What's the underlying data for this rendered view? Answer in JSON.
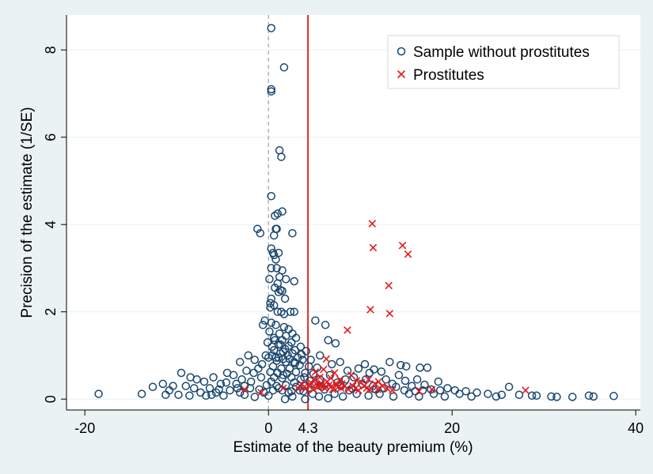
{
  "chart_data": {
    "type": "scatter",
    "xlabel": "Estimate of the beauty premium (%)",
    "ylabel": "Precision of the estimate (1/SE)",
    "xlim": [
      -22,
      40.5
    ],
    "ylim": [
      -0.25,
      8.8
    ],
    "xticks": [
      -20,
      0,
      20,
      40
    ],
    "yticks": [
      0,
      2,
      4,
      6,
      8
    ],
    "grid": "horizontal",
    "legend_position": "top-right",
    "reference_lines": [
      {
        "x": 0,
        "style": "dashed",
        "color": "#a6a6a6"
      },
      {
        "x": 4.3,
        "style": "solid",
        "color": "#e31a1c",
        "label": "4.3"
      }
    ],
    "series": [
      {
        "name": "Sample without prostitutes",
        "marker": "circle",
        "color": "#1a476f",
        "points": [
          [
            0.3,
            8.5
          ],
          [
            1.7,
            7.6
          ],
          [
            0.3,
            7.1
          ],
          [
            0.3,
            7.05
          ],
          [
            1.2,
            5.7
          ],
          [
            1.4,
            5.55
          ],
          [
            0.3,
            4.65
          ],
          [
            1.5,
            4.3
          ],
          [
            1.0,
            4.25
          ],
          [
            0.7,
            4.2
          ],
          [
            0.9,
            3.9
          ],
          [
            0.8,
            3.9
          ],
          [
            -1.2,
            3.9
          ],
          [
            -0.9,
            3.8
          ],
          [
            2.6,
            3.8
          ],
          [
            0.6,
            3.75
          ],
          [
            0.3,
            3.45
          ],
          [
            0.5,
            3.35
          ],
          [
            1.1,
            3.35
          ],
          [
            0.6,
            3.3
          ],
          [
            0.8,
            3.2
          ],
          [
            0.9,
            3.0
          ],
          [
            0.3,
            3.0
          ],
          [
            1.5,
            2.95
          ],
          [
            1.2,
            2.8
          ],
          [
            0.1,
            2.75
          ],
          [
            1.9,
            2.75
          ],
          [
            2.8,
            2.7
          ],
          [
            1.0,
            2.65
          ],
          [
            0.7,
            2.55
          ],
          [
            1.3,
            2.5
          ],
          [
            1.5,
            2.48
          ],
          [
            1.1,
            2.45
          ],
          [
            0.3,
            2.3
          ],
          [
            1.8,
            2.3
          ],
          [
            0.2,
            2.2
          ],
          [
            0.6,
            2.15
          ],
          [
            0.2,
            2.1
          ],
          [
            1.0,
            2.0
          ],
          [
            1.4,
            2.0
          ],
          [
            1.7,
            1.95
          ],
          [
            2.4,
            2.0
          ],
          [
            2.8,
            2.0
          ],
          [
            -0.4,
            1.8
          ],
          [
            0.3,
            1.75
          ],
          [
            -0.6,
            1.7
          ],
          [
            0.8,
            1.7
          ],
          [
            1.7,
            1.65
          ],
          [
            2.2,
            1.6
          ],
          [
            5.1,
            1.8
          ],
          [
            6.2,
            1.7
          ],
          [
            0.1,
            1.55
          ],
          [
            1.2,
            1.5
          ],
          [
            2.6,
            1.5
          ],
          [
            0.6,
            1.4
          ],
          [
            1.9,
            1.45
          ],
          [
            3.0,
            1.4
          ],
          [
            -0.1,
            1.3
          ],
          [
            1.5,
            1.35
          ],
          [
            2.5,
            1.3
          ],
          [
            6.5,
            1.35
          ],
          [
            7.3,
            1.28
          ],
          [
            0.4,
            1.2
          ],
          [
            1.1,
            1.25
          ],
          [
            3.5,
            1.2
          ],
          [
            4.1,
            1.1
          ],
          [
            5.6,
            1.0
          ],
          [
            -2.2,
            1.0
          ],
          [
            -0.3,
            1.0
          ],
          [
            1.3,
            1.05
          ],
          [
            2.1,
            1.0
          ],
          [
            3.2,
            0.95
          ],
          [
            4.6,
            0.9
          ],
          [
            7.8,
            0.85
          ],
          [
            -3.1,
            0.85
          ],
          [
            -1.5,
            0.9
          ],
          [
            0.8,
            0.95
          ],
          [
            2.8,
            0.85
          ],
          [
            3.7,
            0.9
          ],
          [
            6.9,
            0.8
          ],
          [
            10.5,
            0.8
          ],
          [
            13.2,
            0.85
          ],
          [
            14.4,
            0.78
          ],
          [
            15.0,
            0.75
          ],
          [
            16.5,
            0.72
          ],
          [
            17.3,
            0.72
          ],
          [
            9.8,
            0.7
          ],
          [
            11.5,
            0.68
          ],
          [
            12.3,
            0.63
          ],
          [
            -4.5,
            0.6
          ],
          [
            -3.8,
            0.55
          ],
          [
            -2.4,
            0.65
          ],
          [
            -1.1,
            0.7
          ],
          [
            0.5,
            0.75
          ],
          [
            2.3,
            0.7
          ],
          [
            5.3,
            0.72
          ],
          [
            8.6,
            0.65
          ],
          [
            11.0,
            0.6
          ],
          [
            14.2,
            0.55
          ],
          [
            -6.0,
            0.5
          ],
          [
            -2.9,
            0.45
          ],
          [
            -0.8,
            0.5
          ],
          [
            1.6,
            0.55
          ],
          [
            3.9,
            0.5
          ],
          [
            6.7,
            0.55
          ],
          [
            9.3,
            0.5
          ],
          [
            12.8,
            0.45
          ],
          [
            16.2,
            0.45
          ],
          [
            18.5,
            0.4
          ],
          [
            -9.5,
            0.6
          ],
          [
            -8.5,
            0.5
          ],
          [
            -7.8,
            0.45
          ],
          [
            -7.0,
            0.4
          ],
          [
            -5.2,
            0.35
          ],
          [
            -3.5,
            0.35
          ],
          [
            -1.9,
            0.4
          ],
          [
            0.3,
            0.4
          ],
          [
            2.8,
            0.38
          ],
          [
            5.0,
            0.35
          ],
          [
            7.5,
            0.38
          ],
          [
            10.2,
            0.35
          ],
          [
            13.5,
            0.35
          ],
          [
            15.6,
            0.3
          ],
          [
            17.0,
            0.33
          ],
          [
            19.5,
            0.25
          ],
          [
            -11.5,
            0.35
          ],
          [
            -10.4,
            0.3
          ],
          [
            -9.0,
            0.3
          ],
          [
            -8.1,
            0.25
          ],
          [
            -6.4,
            0.25
          ],
          [
            -4.2,
            0.2
          ],
          [
            -2.0,
            0.25
          ],
          [
            1.1,
            0.25
          ],
          [
            3.4,
            0.2
          ],
          [
            6.1,
            0.22
          ],
          [
            8.8,
            0.2
          ],
          [
            11.7,
            0.22
          ],
          [
            14.8,
            0.2
          ],
          [
            16.8,
            0.2
          ],
          [
            18.7,
            0.2
          ],
          [
            20.3,
            0.2
          ],
          [
            21.5,
            0.18
          ],
          [
            22.7,
            0.15
          ],
          [
            -12.6,
            0.28
          ],
          [
            -10.8,
            0.2
          ],
          [
            -7.4,
            0.15
          ],
          [
            -5.7,
            0.15
          ],
          [
            -3.1,
            0.15
          ],
          [
            -0.5,
            0.15
          ],
          [
            2.2,
            0.15
          ],
          [
            4.8,
            0.12
          ],
          [
            7.2,
            0.12
          ],
          [
            9.6,
            0.12
          ],
          [
            12.1,
            0.12
          ],
          [
            15.3,
            0.12
          ],
          [
            18.0,
            0.12
          ],
          [
            20.8,
            0.12
          ],
          [
            23.9,
            0.12
          ],
          [
            25.4,
            0.1
          ],
          [
            26.2,
            0.28
          ],
          [
            27.3,
            0.1
          ],
          [
            -18.5,
            0.12
          ],
          [
            -13.8,
            0.12
          ],
          [
            -11.2,
            0.1
          ],
          [
            -9.8,
            0.1
          ],
          [
            -8.6,
            0.08
          ],
          [
            -6.8,
            0.08
          ],
          [
            -4.9,
            0.08
          ],
          [
            -2.6,
            0.1
          ],
          [
            0.0,
            0.08
          ],
          [
            2.6,
            0.06
          ],
          [
            5.5,
            0.06
          ],
          [
            8.1,
            0.06
          ],
          [
            10.9,
            0.08
          ],
          [
            13.6,
            0.06
          ],
          [
            16.4,
            0.06
          ],
          [
            19.2,
            0.06
          ],
          [
            22.1,
            0.06
          ],
          [
            24.8,
            0.06
          ],
          [
            28.7,
            0.08
          ],
          [
            29.2,
            0.08
          ],
          [
            30.8,
            0.06
          ],
          [
            31.4,
            0.05
          ],
          [
            33.1,
            0.05
          ],
          [
            34.9,
            0.08
          ],
          [
            35.4,
            0.06
          ],
          [
            37.6,
            0.07
          ],
          [
            1.8,
            0.0
          ],
          [
            -1.5,
            0.05
          ],
          [
            4.0,
            0.0
          ],
          [
            6.5,
            0.02
          ],
          [
            0.6,
            1.12
          ],
          [
            1.6,
            1.08
          ],
          [
            2.6,
            1.05
          ],
          [
            0.9,
            0.88
          ],
          [
            1.9,
            0.85
          ],
          [
            2.9,
            0.82
          ],
          [
            3.4,
            0.78
          ],
          [
            4.4,
            0.75
          ],
          [
            1.4,
            0.7
          ],
          [
            0.2,
            0.62
          ],
          [
            1.0,
            0.6
          ],
          [
            2.0,
            0.58
          ],
          [
            3.0,
            0.62
          ],
          [
            4.0,
            0.6
          ],
          [
            4.9,
            0.58
          ],
          [
            0.6,
            0.5
          ],
          [
            1.5,
            0.48
          ],
          [
            2.5,
            0.5
          ],
          [
            3.5,
            0.45
          ],
          [
            4.5,
            0.42
          ],
          [
            5.6,
            0.45
          ],
          [
            -0.2,
            0.32
          ],
          [
            0.9,
            0.3
          ],
          [
            1.9,
            0.32
          ],
          [
            3.0,
            0.28
          ],
          [
            4.0,
            0.3
          ],
          [
            5.8,
            0.28
          ],
          [
            -1.0,
            0.22
          ],
          [
            0.5,
            0.2
          ],
          [
            1.5,
            0.2
          ],
          [
            2.5,
            0.18
          ],
          [
            3.8,
            0.18
          ],
          [
            7.9,
            0.3
          ],
          [
            8.4,
            0.45
          ],
          [
            9.1,
            0.25
          ],
          [
            10.6,
            0.45
          ],
          [
            11.4,
            0.3
          ],
          [
            12.6,
            0.25
          ],
          [
            13.9,
            0.28
          ],
          [
            14.9,
            0.42
          ],
          [
            16.0,
            0.18
          ],
          [
            17.7,
            0.22
          ],
          [
            0.7,
            1.35
          ],
          [
            1.3,
            1.25
          ],
          [
            1.8,
            1.15
          ],
          [
            2.2,
            1.22
          ],
          [
            2.9,
            1.12
          ],
          [
            0.4,
            1.0
          ],
          [
            1.1,
            0.95
          ],
          [
            1.6,
            0.92
          ],
          [
            2.3,
            0.92
          ],
          [
            3.6,
            1.02
          ],
          [
            0.0,
            0.95
          ],
          [
            -0.7,
            0.8
          ],
          [
            -1.6,
            0.6
          ],
          [
            -2.6,
            0.3
          ],
          [
            -3.4,
            0.25
          ],
          [
            -4.6,
            0.38
          ],
          [
            -5.4,
            0.22
          ],
          [
            -6.2,
            0.1
          ]
        ]
      },
      {
        "name": "Prostitutes",
        "marker": "x",
        "color": "#e31a1c",
        "points": [
          [
            11.3,
            4.02
          ],
          [
            11.4,
            3.47
          ],
          [
            14.6,
            3.52
          ],
          [
            15.2,
            3.32
          ],
          [
            13.1,
            2.6
          ],
          [
            11.1,
            2.05
          ],
          [
            13.2,
            1.96
          ],
          [
            8.6,
            1.58
          ],
          [
            6.3,
            0.92
          ],
          [
            5.1,
            0.62
          ],
          [
            6.0,
            0.68
          ],
          [
            7.2,
            0.6
          ],
          [
            9.0,
            0.55
          ],
          [
            5.6,
            0.5
          ],
          [
            6.8,
            0.48
          ],
          [
            7.8,
            0.45
          ],
          [
            9.6,
            0.42
          ],
          [
            10.9,
            0.45
          ],
          [
            12.0,
            0.4
          ],
          [
            4.6,
            0.38
          ],
          [
            5.8,
            0.35
          ],
          [
            6.6,
            0.32
          ],
          [
            7.4,
            0.35
          ],
          [
            8.3,
            0.3
          ],
          [
            9.2,
            0.3
          ],
          [
            10.4,
            0.3
          ],
          [
            11.6,
            0.35
          ],
          [
            12.9,
            0.25
          ],
          [
            3.2,
            0.25
          ],
          [
            4.1,
            0.25
          ],
          [
            4.9,
            0.22
          ],
          [
            5.4,
            0.28
          ],
          [
            6.1,
            0.25
          ],
          [
            7.0,
            0.22
          ],
          [
            7.9,
            0.25
          ],
          [
            8.7,
            0.22
          ],
          [
            9.8,
            0.2
          ],
          [
            11.0,
            0.22
          ],
          [
            1.6,
            0.25
          ],
          [
            -2.6,
            0.22
          ],
          [
            -0.8,
            0.15
          ],
          [
            3.6,
            0.35
          ],
          [
            5.0,
            0.45
          ],
          [
            6.4,
            0.4
          ],
          [
            8.0,
            0.35
          ],
          [
            10.1,
            0.38
          ],
          [
            11.9,
            0.22
          ],
          [
            16.4,
            0.18
          ],
          [
            17.8,
            0.22
          ],
          [
            28.0,
            0.2
          ],
          [
            4.4,
            0.3
          ],
          [
            5.2,
            0.35
          ],
          [
            6.9,
            0.3
          ],
          [
            7.6,
            0.28
          ],
          [
            9.5,
            0.25
          ],
          [
            10.7,
            0.25
          ],
          [
            12.4,
            0.3
          ],
          [
            13.5,
            0.2
          ],
          [
            3.9,
            0.28
          ],
          [
            5.7,
            0.3
          ]
        ]
      }
    ]
  }
}
